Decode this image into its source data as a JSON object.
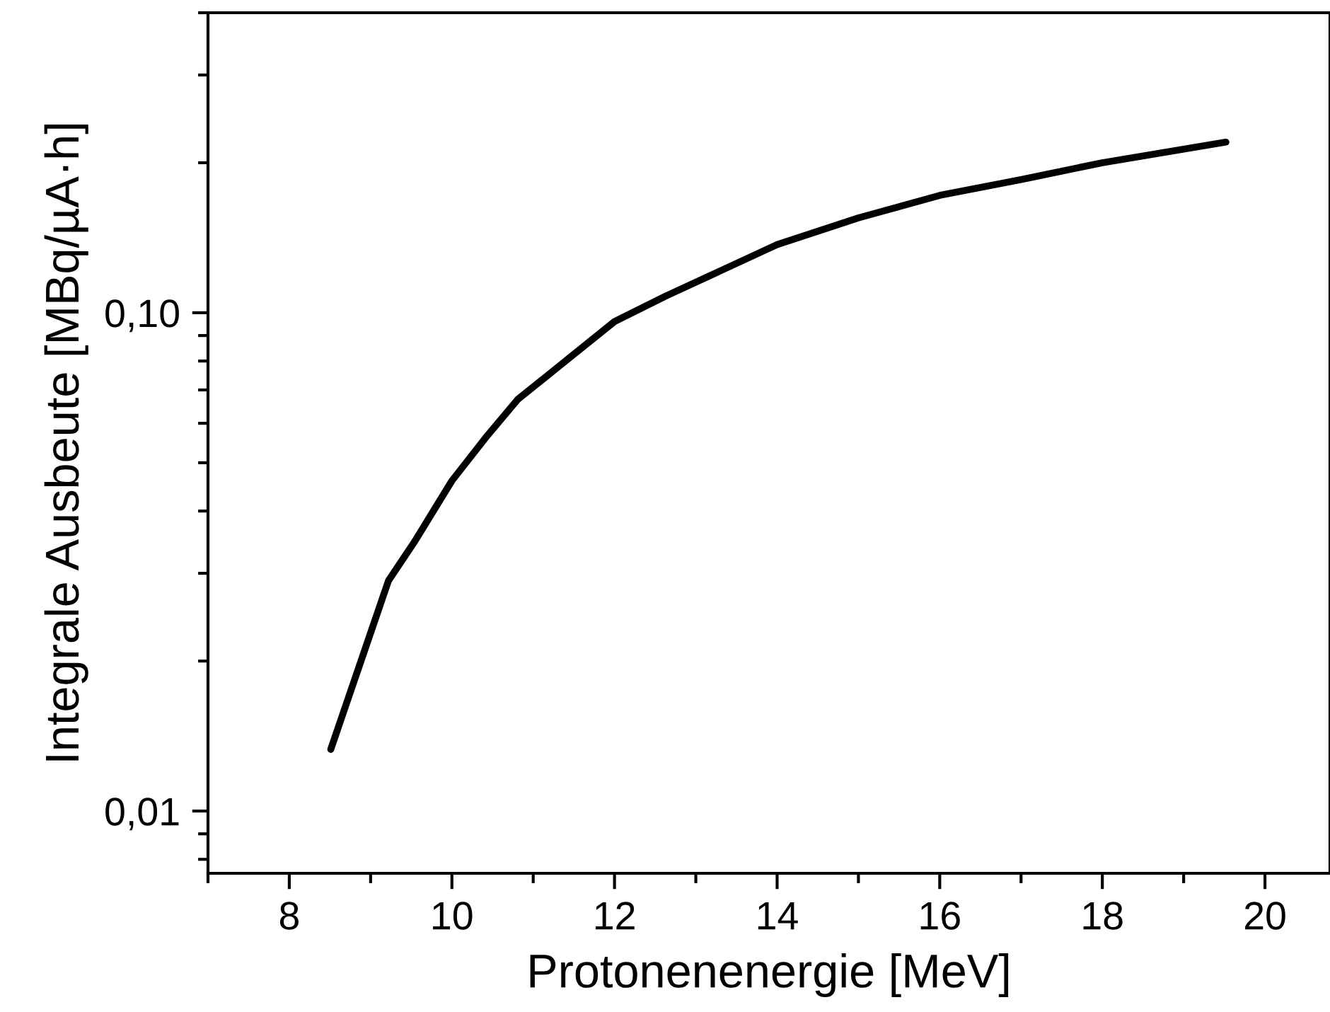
{
  "chart_data": {
    "type": "line",
    "xlabel": "Protonenenergie [MeV]",
    "ylabel": "Integrale Ausbeute [MBq/µA·h]",
    "x": [
      8.51,
      9.22,
      9.54,
      10.0,
      10.41,
      10.81,
      12.0,
      12.63,
      14.0,
      15.0,
      16.0,
      17.0,
      18.0,
      19.52
    ],
    "series": [
      {
        "color": "#000000",
        "values": [
          0.0133,
          0.029,
          0.0347,
          0.046,
          0.056,
          0.067,
          0.096,
          0.108,
          0.137,
          0.155,
          0.172,
          0.185,
          0.2,
          0.22
        ]
      }
    ],
    "log": "y",
    "xlim": [
      7,
      20.8
    ],
    "ylim": [
      0.0075,
      0.4
    ],
    "xticks": [
      8,
      10,
      12,
      14,
      16,
      18,
      20
    ],
    "yticks": [
      {
        "value": 0.01,
        "label": "0,01"
      },
      {
        "value": 0.1,
        "label": "0,10"
      }
    ],
    "grid": false,
    "legend": false,
    "marker": "none",
    "line_style": "solid"
  }
}
